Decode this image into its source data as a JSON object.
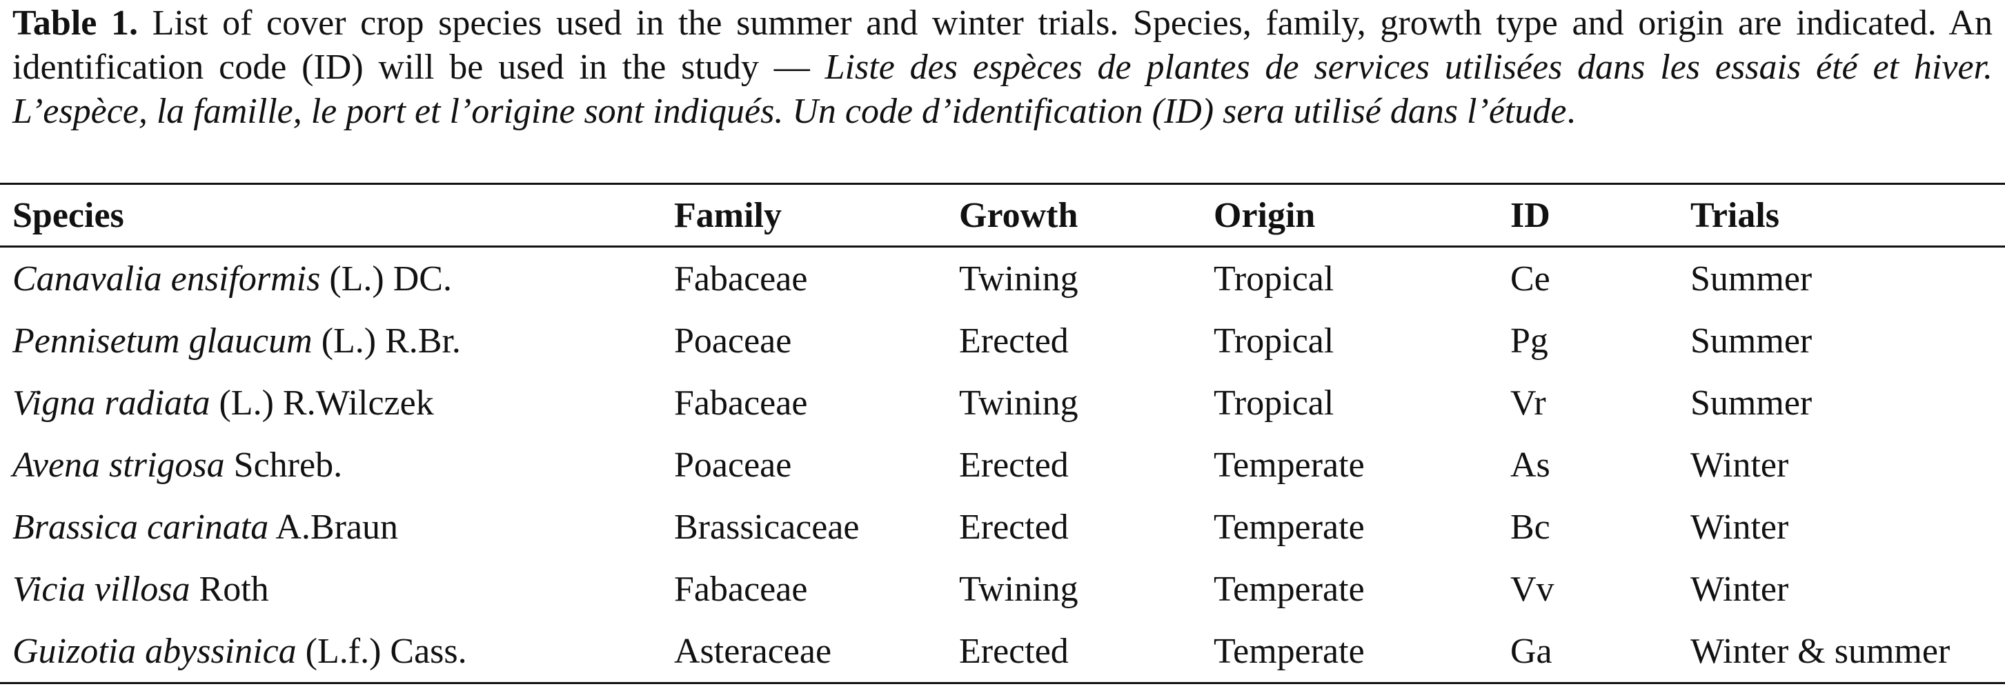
{
  "caption": {
    "label": "Table 1.",
    "text": "List of cover crop species used in the summer and winter trials. Species, family, growth type and origin are indicated. An identification code (ID) will be used in the study —",
    "translation": "Liste des espèces de plantes de services utilisées dans les essais été et hiver. L’espèce, la famille, le port et l’origine sont indiqués. Un code d’identification (ID) sera utilisé dans l’étude"
  },
  "table": {
    "header": [
      "Species",
      "Family",
      "Growth",
      "Origin",
      "ID",
      "Trials"
    ],
    "rows": [
      [
        {
          "name": "Canavalia ensiformis",
          "authority": "(L.) DC."
        },
        "Fabaceae",
        "Twining",
        "Tropical",
        "Ce",
        "Summer"
      ],
      [
        {
          "name": "Pennisetum glaucum",
          "authority": "(L.) R.Br."
        },
        "Poaceae",
        "Erected",
        "Tropical",
        "Pg",
        "Summer"
      ],
      [
        {
          "name": "Vigna radiata",
          "authority": "(L.) R.Wilczek"
        },
        "Fabaceae",
        "Twining",
        "Tropical",
        "Vr",
        "Summer"
      ],
      [
        {
          "name": "Avena strigosa",
          "authority": "Schreb."
        },
        "Poaceae",
        "Erected",
        "Temperate",
        "As",
        "Winter"
      ],
      [
        {
          "name": "Brassica carinata",
          "authority": "A.Braun"
        },
        "Brassicaceae",
        "Erected",
        "Temperate",
        "Bc",
        "Winter"
      ],
      [
        {
          "name": "Vicia villosa",
          "authority": "Roth"
        },
        "Fabaceae",
        "Twining",
        "Temperate",
        "Vv",
        "Winter"
      ],
      [
        {
          "name": "Guizotia abyssinica",
          "authority": "(L.f.) Cass."
        },
        "Asteraceae",
        "Erected",
        "Temperate",
        "Ga",
        "Winter & summer"
      ]
    ]
  }
}
